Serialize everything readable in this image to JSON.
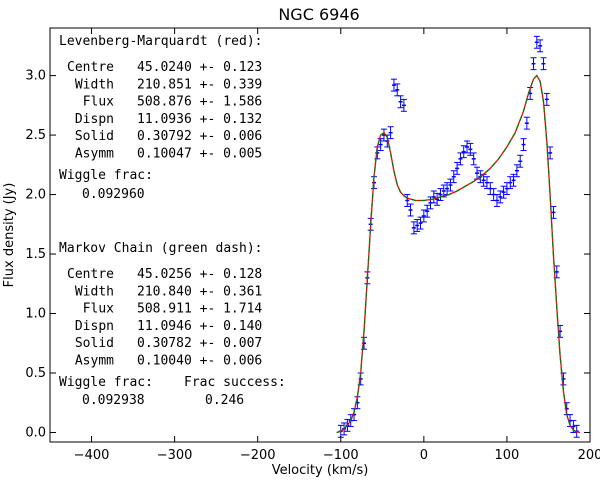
{
  "chart_data": {
    "type": "scatter",
    "title": "NGC 6946",
    "xlabel": "Velocity (km/s)",
    "ylabel": "Flux density (Jy)",
    "xlim": [
      -450,
      200
    ],
    "ylim": [
      -0.08,
      3.4
    ],
    "x_ticks": [
      -400,
      -300,
      -200,
      -100,
      0,
      100,
      200
    ],
    "x_tick_labels": [
      "−400",
      "−300",
      "−200",
      "−100",
      "0",
      "100",
      "200"
    ],
    "y_ticks": [
      0.0,
      0.5,
      1.0,
      1.5,
      2.0,
      2.5,
      3.0
    ],
    "y_tick_labels": [
      "0.0",
      "0.5",
      "1.0",
      "1.5",
      "2.0",
      "2.5",
      "3.0"
    ],
    "grid": false,
    "colors": {
      "data": "#0000ff",
      "fit_lm": "#ff0000",
      "fit_mcmc": "#008000"
    },
    "series": [
      {
        "name": "data",
        "style": "errorbar",
        "x": [
          -100,
          -96,
          -92,
          -88,
          -84,
          -80,
          -76,
          -72,
          -68,
          -64,
          -60,
          -56,
          -52,
          -48,
          -44,
          -40,
          -36,
          -32,
          -28,
          -24,
          -20,
          -16,
          -12,
          -8,
          -4,
          0,
          4,
          8,
          12,
          16,
          20,
          24,
          28,
          32,
          36,
          40,
          44,
          48,
          52,
          56,
          60,
          64,
          68,
          72,
          76,
          80,
          84,
          88,
          92,
          96,
          100,
          104,
          108,
          112,
          116,
          120,
          124,
          128,
          132,
          136,
          140,
          144,
          148,
          152,
          156,
          160,
          164,
          168,
          172,
          176,
          180,
          184
        ],
        "y": [
          0.01,
          0.03,
          0.06,
          0.1,
          0.15,
          0.25,
          0.45,
          0.75,
          1.3,
          1.75,
          2.1,
          2.35,
          2.42,
          2.5,
          2.45,
          2.52,
          2.92,
          2.88,
          2.78,
          2.75,
          1.95,
          1.87,
          1.72,
          1.74,
          1.76,
          1.82,
          1.86,
          1.93,
          1.98,
          1.96,
          2.0,
          2.03,
          2.05,
          2.08,
          2.15,
          2.22,
          2.3,
          2.36,
          2.4,
          2.38,
          2.3,
          2.18,
          2.15,
          2.12,
          2.1,
          2.05,
          2.0,
          1.95,
          1.98,
          2.02,
          2.05,
          2.1,
          2.12,
          2.2,
          2.28,
          2.42,
          2.6,
          2.85,
          3.1,
          3.28,
          3.25,
          3.1,
          2.8,
          2.35,
          1.85,
          1.35,
          0.85,
          0.45,
          0.2,
          0.1,
          0.05,
          0.01
        ],
        "yerr": 0.05
      },
      {
        "name": "Levenberg-Marquardt (red)",
        "style": "line",
        "x": [
          -105,
          -100,
          -96,
          -92,
          -88,
          -84,
          -80,
          -76,
          -72,
          -68,
          -64,
          -60,
          -56,
          -52,
          -48,
          -44,
          -40,
          -36,
          -32,
          -28,
          -24,
          -20,
          -10,
          0,
          10,
          20,
          30,
          40,
          50,
          60,
          70,
          80,
          90,
          100,
          110,
          120,
          126,
          132,
          136,
          140,
          144,
          148,
          152,
          156,
          160,
          164,
          168,
          172,
          176,
          180,
          184,
          188
        ],
        "y": [
          0.0,
          0.01,
          0.03,
          0.06,
          0.1,
          0.17,
          0.3,
          0.5,
          0.85,
          1.3,
          1.75,
          2.15,
          2.4,
          2.5,
          2.52,
          2.48,
          2.35,
          2.2,
          2.08,
          2.02,
          1.99,
          1.97,
          1.95,
          1.95,
          1.96,
          1.98,
          2.0,
          2.03,
          2.07,
          2.11,
          2.16,
          2.22,
          2.3,
          2.4,
          2.52,
          2.7,
          2.85,
          2.97,
          3.0,
          2.95,
          2.78,
          2.45,
          2.0,
          1.5,
          1.05,
          0.65,
          0.35,
          0.15,
          0.06,
          0.02,
          0.005,
          0.0
        ]
      },
      {
        "name": "Markov Chain (green dash)",
        "style": "dashed-line",
        "x": [
          -105,
          -100,
          -96,
          -92,
          -88,
          -84,
          -80,
          -76,
          -72,
          -68,
          -64,
          -60,
          -56,
          -52,
          -48,
          -44,
          -40,
          -36,
          -32,
          -28,
          -24,
          -20,
          -10,
          0,
          10,
          20,
          30,
          40,
          50,
          60,
          70,
          80,
          90,
          100,
          110,
          120,
          126,
          132,
          136,
          140,
          144,
          148,
          152,
          156,
          160,
          164,
          168,
          172,
          176,
          180,
          184,
          188
        ],
        "y": [
          0.0,
          0.01,
          0.03,
          0.06,
          0.1,
          0.17,
          0.3,
          0.5,
          0.85,
          1.3,
          1.75,
          2.15,
          2.4,
          2.5,
          2.52,
          2.48,
          2.35,
          2.2,
          2.08,
          2.02,
          1.99,
          1.97,
          1.95,
          1.95,
          1.96,
          1.98,
          2.0,
          2.03,
          2.07,
          2.11,
          2.16,
          2.22,
          2.3,
          2.4,
          2.52,
          2.7,
          2.85,
          2.97,
          3.0,
          2.95,
          2.78,
          2.45,
          2.0,
          1.5,
          1.05,
          0.65,
          0.35,
          0.15,
          0.06,
          0.02,
          0.005,
          0.0
        ]
      }
    ],
    "annotations": {
      "lm": {
        "heading": "Levenberg-Marquardt (red):",
        "rows": [
          {
            "label": "Centre",
            "value": "45.0240 +- 0.123"
          },
          {
            "label": "Width",
            "value": "210.851 +- 0.339"
          },
          {
            "label": "Flux",
            "value": "508.876 +- 1.586"
          },
          {
            "label": "Dispn",
            "value": "11.0936 +- 0.132"
          },
          {
            "label": "Solid",
            "value": "0.30792 +- 0.006"
          },
          {
            "label": "Asymm",
            "value": "0.10047 +- 0.005"
          }
        ],
        "wiggle_label": "Wiggle frac:",
        "wiggle_value": "0.092960"
      },
      "mcmc": {
        "heading": "Markov Chain (green dash):",
        "rows": [
          {
            "label": "Centre",
            "value": "45.0256 +- 0.128"
          },
          {
            "label": "Width",
            "value": "210.840 +- 0.361"
          },
          {
            "label": "Flux",
            "value": "508.911 +- 1.714"
          },
          {
            "label": "Dispn",
            "value": "11.0946 +- 0.140"
          },
          {
            "label": "Solid",
            "value": "0.30782 +- 0.007"
          },
          {
            "label": "Asymm",
            "value": "0.10040 +- 0.006"
          }
        ],
        "wiggle_label": "Wiggle frac:",
        "wiggle_value": "0.092938",
        "success_label": "Frac success:",
        "success_value": "0.246"
      }
    }
  }
}
